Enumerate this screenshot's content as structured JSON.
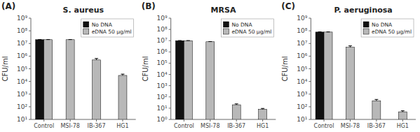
{
  "chart_data": [
    {
      "type": "bar",
      "title": "S. aureus",
      "annotations": [
        "(A)"
      ],
      "y_label": "CFU/ml",
      "categories": [
        "Control",
        "MSI-78",
        "IB-367",
        "HG1"
      ],
      "series": [
        {
          "name": "No DNA",
          "color": "#111111",
          "values": [
            20000000,
            null,
            null,
            null
          ],
          "errors": [
            400000,
            null,
            null,
            null
          ]
        },
        {
          "name": "eDNA 50 μg/ml",
          "color": "#b8b8b8",
          "values": [
            20000000,
            20000000,
            500000,
            30000
          ],
          "errors": [
            400000,
            400000,
            150000,
            8000
          ]
        }
      ],
      "log": "y",
      "legend": "upper right",
      "ylim": [
        10,
        1000000000
      ],
      "yticks": [
        {
          "value": 10,
          "label": "10¹"
        },
        {
          "value": 100,
          "label": "10²"
        },
        {
          "value": 1000,
          "label": "10³"
        },
        {
          "value": 10000,
          "label": "10⁴"
        },
        {
          "value": 100000,
          "label": "10⁵"
        },
        {
          "value": 1000000,
          "label": "10⁶"
        },
        {
          "value": 10000000,
          "label": "10⁷"
        },
        {
          "value": 100000000,
          "label": "10⁸"
        },
        {
          "value": 1000000000,
          "label": "10⁹"
        }
      ]
    },
    {
      "type": "bar",
      "title": "MRSA",
      "annotations": [
        "(B)"
      ],
      "y_label": "CFU/ml",
      "categories": [
        "Control",
        "MSI-78",
        "IB-367",
        "HG1"
      ],
      "series": [
        {
          "name": "No DNA",
          "color": "#111111",
          "values": [
            10000000,
            null,
            null,
            null
          ],
          "errors": [
            200000,
            null,
            null,
            null
          ]
        },
        {
          "name": "eDNA 50 μg/ml",
          "color": "#b8b8b8",
          "values": [
            10000000,
            8000000,
            20,
            8
          ],
          "errors": [
            200000,
            300000,
            4,
            1.5
          ]
        }
      ],
      "log": "y",
      "legend": "upper right",
      "ylim": [
        1,
        1000000000
      ],
      "yticks": [
        {
          "value": 1,
          "label": "10⁰"
        },
        {
          "value": 10,
          "label": "10¹"
        },
        {
          "value": 100,
          "label": "10²"
        },
        {
          "value": 1000,
          "label": "10³"
        },
        {
          "value": 10000,
          "label": "10⁴"
        },
        {
          "value": 100000,
          "label": "10⁵"
        },
        {
          "value": 1000000,
          "label": "10⁶"
        },
        {
          "value": 10000000,
          "label": "10⁷"
        },
        {
          "value": 100000000,
          "label": "10⁸"
        },
        {
          "value": 1000000000,
          "label": "10⁹"
        }
      ]
    },
    {
      "type": "bar",
      "title": "P. aeruginosa",
      "annotations": [
        "(C)"
      ],
      "y_label": "CFU/ml",
      "categories": [
        "Control",
        "MSI-78",
        "IB-367",
        "HG1"
      ],
      "series": [
        {
          "name": "No DNA",
          "color": "#111111",
          "values": [
            80000000,
            null,
            null,
            null
          ],
          "errors": [
            2000000,
            null,
            null,
            null
          ]
        },
        {
          "name": "eDNA 50 μg/ml",
          "color": "#b8b8b8",
          "values": [
            80000000,
            5000000,
            300,
            40
          ],
          "errors": [
            2000000,
            1500000,
            80,
            8
          ]
        }
      ],
      "log": "y",
      "legend": "upper right",
      "ylim": [
        10,
        1000000000
      ],
      "yticks": [
        {
          "value": 10,
          "label": "10¹"
        },
        {
          "value": 100,
          "label": "10²"
        },
        {
          "value": 1000,
          "label": "10³"
        },
        {
          "value": 10000,
          "label": "10⁴"
        },
        {
          "value": 100000,
          "label": "10⁵"
        },
        {
          "value": 1000000,
          "label": "10⁶"
        },
        {
          "value": 10000000,
          "label": "10⁷"
        },
        {
          "value": 100000000,
          "label": "10⁸"
        },
        {
          "value": 1000000000,
          "label": "10⁹"
        }
      ]
    }
  ]
}
